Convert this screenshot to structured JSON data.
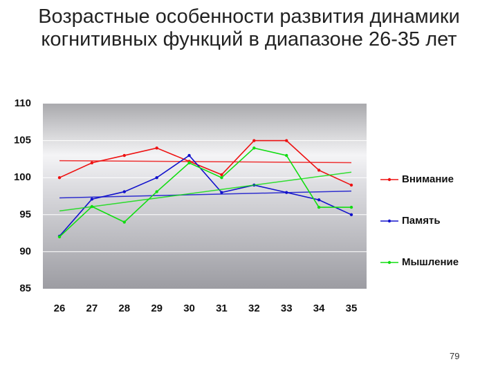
{
  "chart_data": {
    "type": "line",
    "title": "Возрастные особенности развития динамики когнитивных функций в диапазоне 26-35 лет",
    "categories": [
      "26",
      "27",
      "28",
      "29",
      "30",
      "31",
      "32",
      "33",
      "34",
      "35"
    ],
    "series": [
      {
        "name": "Внимание",
        "color": "#ee1111",
        "values": [
          100,
          102,
          103,
          104,
          102.2,
          100.4,
          105,
          105,
          101,
          99
        ]
      },
      {
        "name": "Память",
        "color": "#1111cc",
        "values": [
          92.1,
          97.1,
          98.1,
          100,
          103,
          98,
          99,
          98,
          97,
          95
        ]
      },
      {
        "name": "Мышление",
        "color": "#11dd11",
        "values": [
          92,
          96.1,
          94,
          98.1,
          102,
          100,
          104,
          103,
          96,
          96
        ]
      }
    ],
    "ylim": [
      85,
      110
    ],
    "yticks": [
      85,
      90,
      95,
      100,
      105,
      110
    ],
    "grid": true,
    "trendline": true,
    "legend": "right"
  },
  "slide": {
    "page_number": "79"
  }
}
